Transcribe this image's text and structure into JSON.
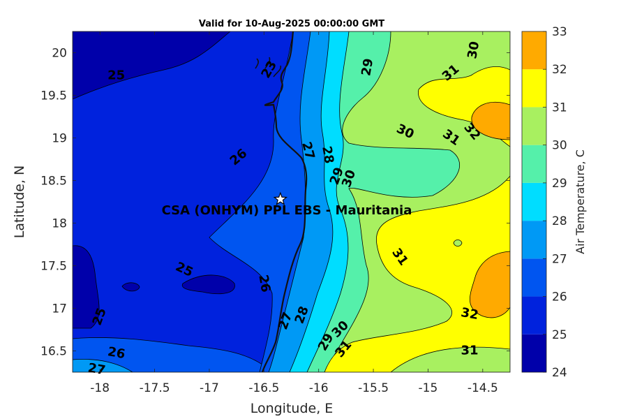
{
  "title": "Valid for 10-Aug-2025 00:00:00 GMT",
  "site_label": "CSA (ONHYM) PPL EBS  - Mauritania",
  "site": {
    "lon": -16.35,
    "lat": 18.28
  },
  "chart_data": {
    "type": "heatmap",
    "title": "Valid for 10-Aug-2025 00:00:00 GMT",
    "xlabel": "Longitude, E",
    "ylabel": "Latitude, N",
    "xlim": [
      -18.25,
      -14.25
    ],
    "ylim": [
      16.25,
      20.25
    ],
    "xticks": [
      "-18",
      "-17.5",
      "-17",
      "-16.5",
      "-16",
      "-15.5",
      "-15",
      "-14.5"
    ],
    "yticks": [
      "16.5",
      "17",
      "17.5",
      "18",
      "18.5",
      "19",
      "19.5",
      "20"
    ],
    "colorbar": {
      "label": "Air Temperature, C",
      "ticks": [
        "24",
        "25",
        "26",
        "27",
        "28",
        "29",
        "30",
        "31",
        "32",
        "33"
      ],
      "levels": [
        24,
        25,
        26,
        27,
        28,
        29,
        30,
        31,
        32,
        33
      ],
      "colors": [
        "#0000AA",
        "#0022DD",
        "#0055F0",
        "#0099F5",
        "#00DDFF",
        "#55F0AA",
        "#A8F060",
        "#FFFF00",
        "#FFAA00",
        "#FF5500"
      ]
    },
    "contour_labels": [
      {
        "text": "25",
        "lon": -17.85,
        "lat": 19.73,
        "angle": 0
      },
      {
        "text": "26",
        "lon": -16.73,
        "lat": 18.77,
        "angle": -40
      },
      {
        "text": "27",
        "lon": -16.1,
        "lat": 18.85,
        "angle": 75
      },
      {
        "text": "28",
        "lon": -15.92,
        "lat": 18.8,
        "angle": 80
      },
      {
        "text": "29",
        "lon": -15.83,
        "lat": 18.55,
        "angle": -70
      },
      {
        "text": "30",
        "lon": -15.72,
        "lat": 18.52,
        "angle": -70
      },
      {
        "text": "29",
        "lon": -15.55,
        "lat": 19.83,
        "angle": -80
      },
      {
        "text": "30",
        "lon": -14.58,
        "lat": 20.03,
        "angle": -80
      },
      {
        "text": "31",
        "lon": -14.79,
        "lat": 19.76,
        "angle": -40
      },
      {
        "text": "30",
        "lon": -15.21,
        "lat": 19.07,
        "angle": 25
      },
      {
        "text": "31",
        "lon": -14.79,
        "lat": 19.0,
        "angle": 35
      },
      {
        "text": "32",
        "lon": -14.6,
        "lat": 19.07,
        "angle": 50
      },
      {
        "text": "31",
        "lon": -15.26,
        "lat": 17.6,
        "angle": 55
      },
      {
        "text": "32",
        "lon": -14.62,
        "lat": 16.93,
        "angle": 10
      },
      {
        "text": "31",
        "lon": -14.62,
        "lat": 16.5,
        "angle": 0
      },
      {
        "text": "25",
        "lon": -17.23,
        "lat": 17.45,
        "angle": 25
      },
      {
        "text": "26",
        "lon": -16.5,
        "lat": 17.29,
        "angle": 80
      },
      {
        "text": "25",
        "lon": -18.0,
        "lat": 16.9,
        "angle": -70
      },
      {
        "text": "26",
        "lon": -17.85,
        "lat": 16.47,
        "angle": 10
      },
      {
        "text": "27",
        "lon": -18.03,
        "lat": 16.28,
        "angle": 10
      },
      {
        "text": "27",
        "lon": -16.3,
        "lat": 16.85,
        "angle": -70
      },
      {
        "text": "28",
        "lon": -16.15,
        "lat": 16.92,
        "angle": -70
      },
      {
        "text": "29",
        "lon": -15.93,
        "lat": 16.6,
        "angle": -60
      },
      {
        "text": "30",
        "lon": -15.8,
        "lat": 16.75,
        "angle": -45
      },
      {
        "text": "31",
        "lon": -15.77,
        "lat": 16.52,
        "angle": -50
      },
      {
        "text": "23",
        "lon": -16.45,
        "lat": 19.8,
        "angle": -60
      }
    ]
  }
}
